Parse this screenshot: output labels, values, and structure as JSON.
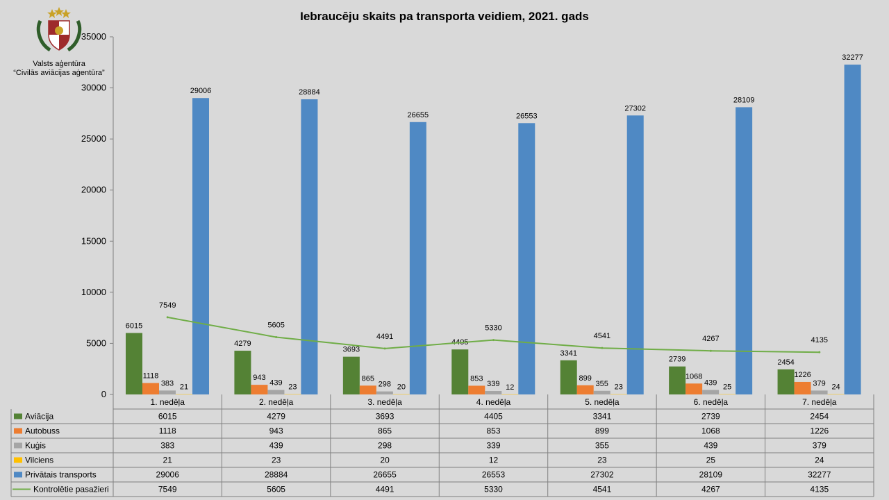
{
  "organization": {
    "line1": "Valsts aģentūra",
    "line2": "“Civilās aviācijas aģentūra”"
  },
  "colors": {
    "background": "#d9d9d9",
    "gold": "#c9a227",
    "shield_red": "#9e2a2b",
    "oak_green": "#2f5d2a"
  },
  "chart_data": {
    "type": "bar",
    "title": "Iebraucēju skaits pa transporta  veidiem, 2021. gads",
    "xlabel": "",
    "ylabel": "",
    "ylim": [
      0,
      35000
    ],
    "yticks": [
      0,
      5000,
      10000,
      15000,
      20000,
      25000,
      30000,
      35000
    ],
    "grid": false,
    "legend": "table-left",
    "data_table": true,
    "categories": [
      "1. nedēļa",
      "2. nedēļa",
      "3. nedēļa",
      "4. nedēļa",
      "5. nedēļa",
      "6. nedēļa",
      "7. nedēļa"
    ],
    "series": [
      {
        "name": "Aviācija",
        "type": "bar",
        "color": "#548235",
        "values": [
          6015,
          4279,
          3693,
          4405,
          3341,
          2739,
          2454
        ]
      },
      {
        "name": "Autobuss",
        "type": "bar",
        "color": "#ed7d31",
        "values": [
          1118,
          943,
          865,
          853,
          899,
          1068,
          1226
        ]
      },
      {
        "name": "Kuģis",
        "type": "bar",
        "color": "#a5a5a5",
        "values": [
          383,
          439,
          298,
          339,
          355,
          439,
          379
        ]
      },
      {
        "name": "Vilciens",
        "type": "bar",
        "color": "#ffc000",
        "values": [
          21,
          23,
          20,
          12,
          23,
          25,
          24
        ]
      },
      {
        "name": "Privātais transports",
        "type": "bar",
        "color": "#4f89c4",
        "values": [
          29006,
          28884,
          26655,
          26553,
          27302,
          28109,
          32277
        ]
      },
      {
        "name": "Kontrolētie pasažieri",
        "type": "line",
        "color": "#70ad47",
        "values": [
          7549,
          5605,
          4491,
          5330,
          4541,
          4267,
          4135
        ]
      }
    ]
  }
}
